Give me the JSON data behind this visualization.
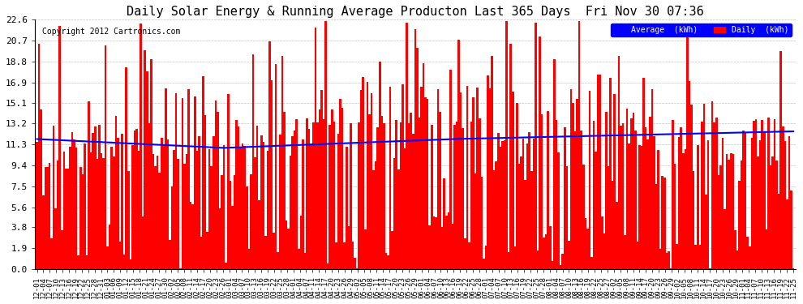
{
  "title": "Daily Solar Energy & Running Average Producton Last 365 Days  Fri Nov 30 07:36",
  "copyright": "Copyright 2012 Cartronics.com",
  "legend_avg": "Average  (kWh)",
  "legend_daily": "Daily  (kWh)",
  "bar_color": "#ff0000",
  "avg_color": "#0000ff",
  "bg_color": "#ffffff",
  "plot_bg_color": "#ffffff",
  "grid_color": "#aaaaaa",
  "yticks": [
    0.0,
    1.9,
    3.8,
    5.6,
    7.5,
    9.4,
    11.3,
    13.2,
    15.1,
    16.9,
    18.8,
    20.7,
    22.6
  ],
  "xlabel_rotation": 90,
  "ylim": [
    0,
    22.6
  ],
  "num_days": 365,
  "x_labels": [
    "12-01",
    "12-04",
    "12-07",
    "12-10",
    "12-13",
    "12-16",
    "12-19",
    "12-22",
    "12-25",
    "12-28",
    "12-31",
    "01-03",
    "01-06",
    "01-09",
    "01-12",
    "01-15",
    "01-18",
    "01-21",
    "01-24",
    "01-27",
    "01-30",
    "02-02",
    "02-05",
    "02-08",
    "02-11",
    "02-14",
    "02-17",
    "02-20",
    "02-23",
    "02-26",
    "03-01",
    "03-04",
    "03-07",
    "03-10",
    "03-13",
    "03-16",
    "03-19",
    "03-22",
    "03-25",
    "03-28",
    "04-01",
    "04-04",
    "04-07",
    "04-11",
    "04-14",
    "04-17",
    "04-20",
    "04-23",
    "04-26",
    "04-29",
    "05-02",
    "05-05",
    "05-08",
    "05-11",
    "05-14",
    "05-17",
    "05-20",
    "05-23",
    "05-26",
    "05-29",
    "06-01",
    "06-04",
    "06-07",
    "06-10",
    "06-13",
    "06-16",
    "06-19",
    "06-22",
    "06-25",
    "06-28",
    "07-01",
    "07-04",
    "07-07",
    "07-10",
    "07-13",
    "07-16",
    "07-19",
    "07-22",
    "07-25",
    "07-28",
    "08-01",
    "08-04",
    "08-07",
    "08-10",
    "08-13",
    "08-16",
    "08-19",
    "08-22",
    "08-25",
    "08-27",
    "09-02",
    "09-05",
    "09-08",
    "09-11",
    "09-14",
    "09-17",
    "09-20",
    "09-23",
    "09-26",
    "09-29",
    "10-02",
    "10-05",
    "10-08",
    "10-11",
    "10-14",
    "10-17",
    "10-20",
    "10-23",
    "10-26",
    "10-29",
    "11-01",
    "11-04",
    "11-07",
    "11-10",
    "11-13",
    "11-16",
    "11-19",
    "11-22",
    "11-25"
  ]
}
